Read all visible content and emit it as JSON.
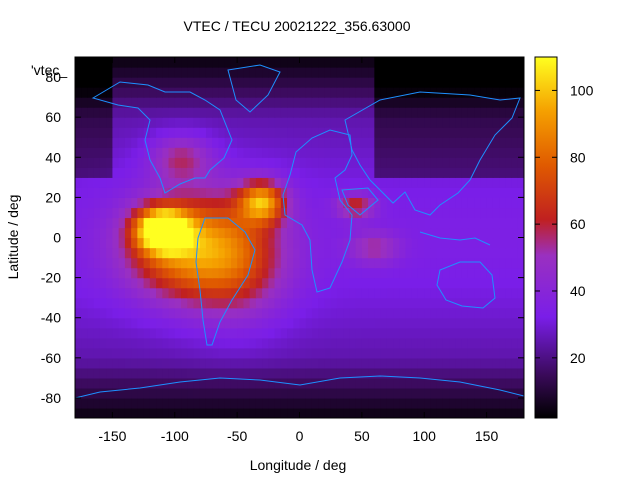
{
  "chart_data": {
    "type": "heatmap",
    "title": "VTEC / TECU 20021222_356.63000",
    "xlabel": "Longitude / deg",
    "ylabel": "Latitude / deg",
    "xlim": [
      -180,
      180
    ],
    "ylim": [
      -90,
      90
    ],
    "x_ticks": [
      -150,
      -100,
      -50,
      0,
      50,
      100,
      150
    ],
    "y_ticks": [
      -80,
      -60,
      -40,
      -20,
      0,
      20,
      40,
      60,
      80
    ],
    "colorbar": {
      "range": [
        2,
        110
      ],
      "ticks": [
        20,
        40,
        60,
        80,
        100
      ],
      "palette": "black-purple-red-orange-yellow"
    },
    "key_label": "'vtec_",
    "grid": false,
    "coastline_color": "#1e90ff",
    "data_description_blobs": [
      {
        "lon": -110,
        "lat": 4,
        "peak": 110,
        "spread_lon": 20,
        "spread_lat": 10
      },
      {
        "lon": -95,
        "lat": -5,
        "peak": 80,
        "spread_lon": 45,
        "spread_lat": 25
      },
      {
        "lon": -30,
        "lat": 18,
        "peak": 85,
        "spread_lon": 18,
        "spread_lat": 10
      },
      {
        "lon": -50,
        "lat": -10,
        "peak": 65,
        "spread_lon": 40,
        "spread_lat": 30
      },
      {
        "lon": 45,
        "lat": 16,
        "peak": 60,
        "spread_lon": 15,
        "spread_lat": 6
      },
      {
        "lon": 60,
        "lat": -5,
        "peak": 50,
        "spread_lon": 20,
        "spread_lat": 8
      },
      {
        "lon": -95,
        "lat": 40,
        "peak": 55,
        "spread_lon": 25,
        "spread_lat": 12
      }
    ]
  }
}
